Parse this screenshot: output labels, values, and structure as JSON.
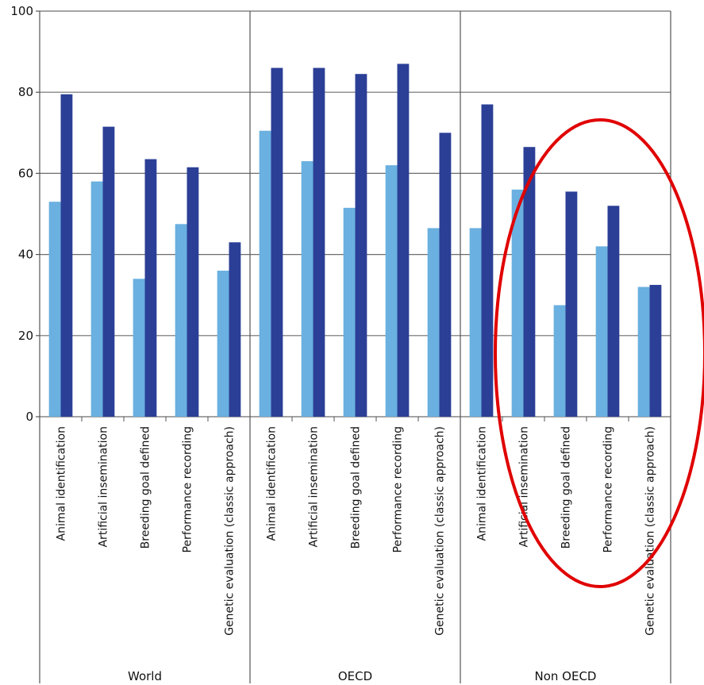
{
  "chart_data": {
    "type": "bar",
    "ylim": [
      0,
      100
    ],
    "yticks": [
      0,
      20,
      40,
      60,
      80,
      100
    ],
    "grid": true,
    "groups": [
      "World",
      "OECD",
      "Non OECD"
    ],
    "categories": [
      "Animal identification",
      "Artificial insemination",
      "Breeding goal defined",
      "Performance recording",
      "Genetic evaluation (classic approach)"
    ],
    "series": [
      {
        "color": "#6ab0e0",
        "values": [
          [
            53,
            58,
            34,
            47.5,
            36
          ],
          [
            70.5,
            63,
            51.5,
            62,
            46.5
          ],
          [
            46.5,
            56,
            27.5,
            42,
            32
          ]
        ]
      },
      {
        "color": "#2b3f96",
        "values": [
          [
            79.5,
            71.5,
            63.5,
            61.5,
            43
          ],
          [
            86,
            86,
            84.5,
            87,
            70
          ],
          [
            77,
            66.5,
            55.5,
            52,
            32.5
          ]
        ]
      }
    ],
    "annotation": {
      "shape": "ellipse",
      "color": "#e00000"
    }
  }
}
